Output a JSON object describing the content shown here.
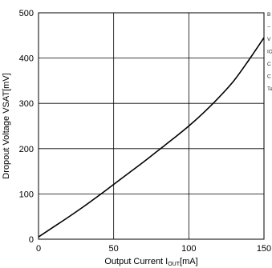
{
  "chart_data": {
    "type": "line",
    "xlabel": "Output Current I",
    "xlabel_subscript": "OUT",
    "xlabel_unit": "[mA]",
    "ylabel": "Dropout Voltage  VSAT[mV]",
    "xlim": [
      0,
      150
    ],
    "ylim": [
      0,
      500
    ],
    "x_ticks": [
      0,
      50,
      100,
      150
    ],
    "y_ticks": [
      0,
      100,
      200,
      300,
      400,
      500
    ],
    "grid": true,
    "series": [
      {
        "x": [
          0,
          10,
          20,
          30,
          40,
          50,
          60,
          70,
          80,
          90,
          100,
          110,
          120,
          130,
          140,
          150
        ],
        "values": [
          5,
          27,
          49,
          72,
          96,
          121,
          146,
          171,
          197,
          223,
          250,
          280,
          313,
          350,
          396,
          445
        ]
      }
    ],
    "notes": [
      "B",
      "~",
      "V",
      "IO",
      "C",
      "C",
      "Ta"
    ],
    "colors": {
      "line": "#000000",
      "grid": "#000000",
      "background": "#ffffff"
    }
  }
}
